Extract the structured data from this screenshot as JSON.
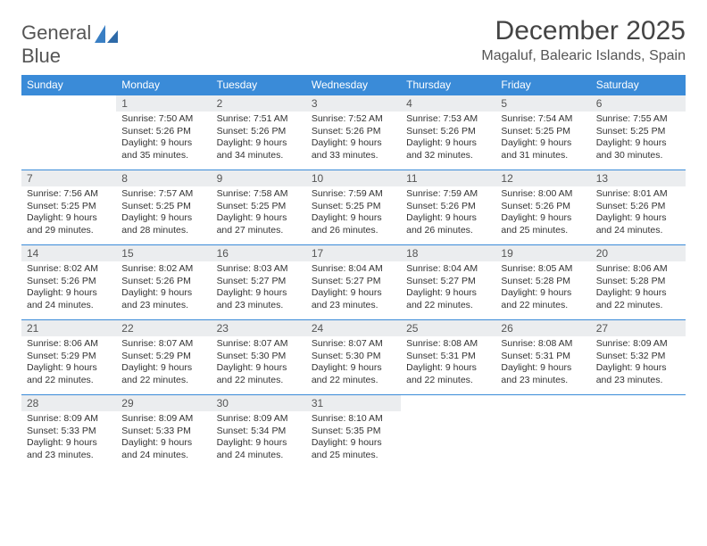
{
  "brand": {
    "name1": "General",
    "name2": "Blue"
  },
  "colors": {
    "header_bg": "#3a8bd8",
    "daynum_bg": "#ebedef",
    "accent": "#3a7fc4",
    "rule": "#3a8bd8"
  },
  "title": "December 2025",
  "location": "Magaluf, Balearic Islands, Spain",
  "weekdays": [
    "Sunday",
    "Monday",
    "Tuesday",
    "Wednesday",
    "Thursday",
    "Friday",
    "Saturday"
  ],
  "start_offset": 1,
  "days": [
    {
      "n": 1,
      "sr": "7:50 AM",
      "ss": "5:26 PM",
      "dl": "9 hours and 35 minutes."
    },
    {
      "n": 2,
      "sr": "7:51 AM",
      "ss": "5:26 PM",
      "dl": "9 hours and 34 minutes."
    },
    {
      "n": 3,
      "sr": "7:52 AM",
      "ss": "5:26 PM",
      "dl": "9 hours and 33 minutes."
    },
    {
      "n": 4,
      "sr": "7:53 AM",
      "ss": "5:26 PM",
      "dl": "9 hours and 32 minutes."
    },
    {
      "n": 5,
      "sr": "7:54 AM",
      "ss": "5:25 PM",
      "dl": "9 hours and 31 minutes."
    },
    {
      "n": 6,
      "sr": "7:55 AM",
      "ss": "5:25 PM",
      "dl": "9 hours and 30 minutes."
    },
    {
      "n": 7,
      "sr": "7:56 AM",
      "ss": "5:25 PM",
      "dl": "9 hours and 29 minutes."
    },
    {
      "n": 8,
      "sr": "7:57 AM",
      "ss": "5:25 PM",
      "dl": "9 hours and 28 minutes."
    },
    {
      "n": 9,
      "sr": "7:58 AM",
      "ss": "5:25 PM",
      "dl": "9 hours and 27 minutes."
    },
    {
      "n": 10,
      "sr": "7:59 AM",
      "ss": "5:25 PM",
      "dl": "9 hours and 26 minutes."
    },
    {
      "n": 11,
      "sr": "7:59 AM",
      "ss": "5:26 PM",
      "dl": "9 hours and 26 minutes."
    },
    {
      "n": 12,
      "sr": "8:00 AM",
      "ss": "5:26 PM",
      "dl": "9 hours and 25 minutes."
    },
    {
      "n": 13,
      "sr": "8:01 AM",
      "ss": "5:26 PM",
      "dl": "9 hours and 24 minutes."
    },
    {
      "n": 14,
      "sr": "8:02 AM",
      "ss": "5:26 PM",
      "dl": "9 hours and 24 minutes."
    },
    {
      "n": 15,
      "sr": "8:02 AM",
      "ss": "5:26 PM",
      "dl": "9 hours and 23 minutes."
    },
    {
      "n": 16,
      "sr": "8:03 AM",
      "ss": "5:27 PM",
      "dl": "9 hours and 23 minutes."
    },
    {
      "n": 17,
      "sr": "8:04 AM",
      "ss": "5:27 PM",
      "dl": "9 hours and 23 minutes."
    },
    {
      "n": 18,
      "sr": "8:04 AM",
      "ss": "5:27 PM",
      "dl": "9 hours and 22 minutes."
    },
    {
      "n": 19,
      "sr": "8:05 AM",
      "ss": "5:28 PM",
      "dl": "9 hours and 22 minutes."
    },
    {
      "n": 20,
      "sr": "8:06 AM",
      "ss": "5:28 PM",
      "dl": "9 hours and 22 minutes."
    },
    {
      "n": 21,
      "sr": "8:06 AM",
      "ss": "5:29 PM",
      "dl": "9 hours and 22 minutes."
    },
    {
      "n": 22,
      "sr": "8:07 AM",
      "ss": "5:29 PM",
      "dl": "9 hours and 22 minutes."
    },
    {
      "n": 23,
      "sr": "8:07 AM",
      "ss": "5:30 PM",
      "dl": "9 hours and 22 minutes."
    },
    {
      "n": 24,
      "sr": "8:07 AM",
      "ss": "5:30 PM",
      "dl": "9 hours and 22 minutes."
    },
    {
      "n": 25,
      "sr": "8:08 AM",
      "ss": "5:31 PM",
      "dl": "9 hours and 22 minutes."
    },
    {
      "n": 26,
      "sr": "8:08 AM",
      "ss": "5:31 PM",
      "dl": "9 hours and 23 minutes."
    },
    {
      "n": 27,
      "sr": "8:09 AM",
      "ss": "5:32 PM",
      "dl": "9 hours and 23 minutes."
    },
    {
      "n": 28,
      "sr": "8:09 AM",
      "ss": "5:33 PM",
      "dl": "9 hours and 23 minutes."
    },
    {
      "n": 29,
      "sr": "8:09 AM",
      "ss": "5:33 PM",
      "dl": "9 hours and 24 minutes."
    },
    {
      "n": 30,
      "sr": "8:09 AM",
      "ss": "5:34 PM",
      "dl": "9 hours and 24 minutes."
    },
    {
      "n": 31,
      "sr": "8:10 AM",
      "ss": "5:35 PM",
      "dl": "9 hours and 25 minutes."
    }
  ],
  "labels": {
    "sunrise": "Sunrise:",
    "sunset": "Sunset:",
    "daylight": "Daylight:"
  }
}
